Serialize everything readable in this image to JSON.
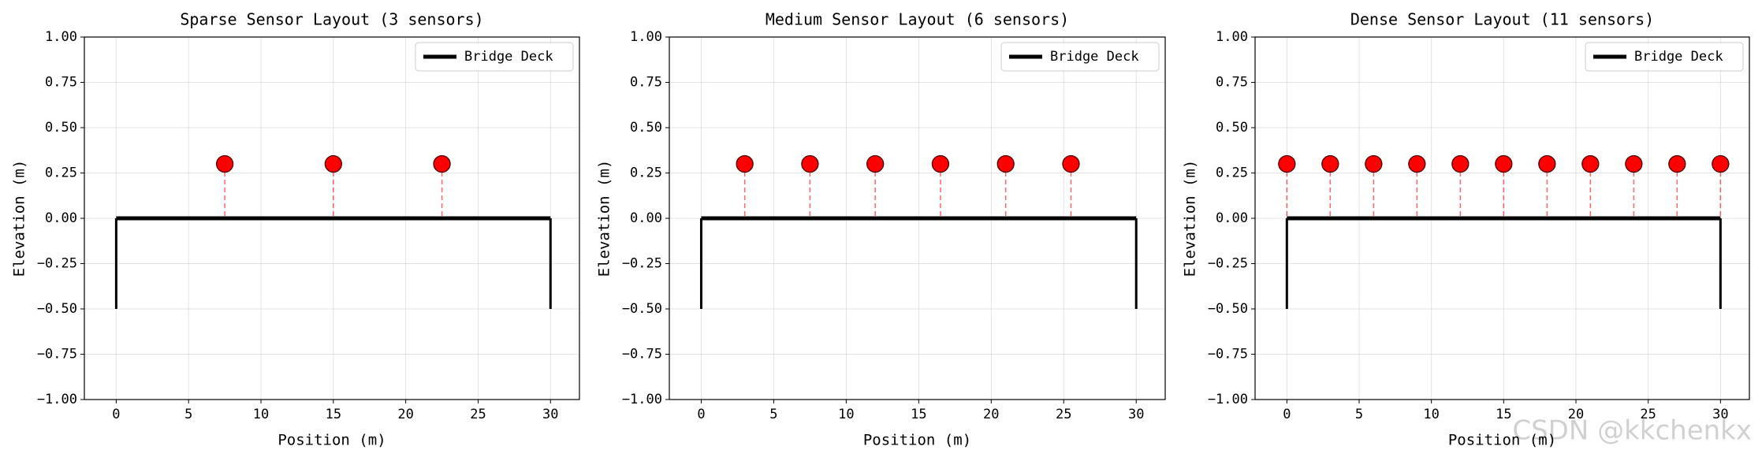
{
  "chart_data": [
    {
      "type": "scatter",
      "title": "Sparse Sensor Layout (3 sensors)",
      "xlabel": "Position (m)",
      "ylabel": "Elevation (m)",
      "x": [
        7.5,
        15,
        22.5
      ],
      "y": [
        0.3,
        0.3,
        0.3
      ],
      "color": "red",
      "deck": {
        "name": "Bridge Deck",
        "x": [
          0,
          30
        ],
        "y": 0,
        "pier_bottom": -0.5,
        "color": "black"
      },
      "xlim": [
        -2.2,
        32
      ],
      "ylim": [
        -1,
        1
      ],
      "xticks": [
        0,
        5,
        10,
        15,
        20,
        25,
        30
      ],
      "yticks": [
        {
          "value": 1,
          "label": "1.00"
        },
        {
          "value": 0.75,
          "label": "0.75"
        },
        {
          "value": 0.5,
          "label": "0.50"
        },
        {
          "value": 0.25,
          "label": "0.25"
        },
        {
          "value": 0,
          "label": "0.00"
        },
        {
          "value": -0.25,
          "label": "−0.25"
        },
        {
          "value": -0.5,
          "label": "−0.50"
        },
        {
          "value": -0.75,
          "label": "−0.75"
        },
        {
          "value": -1,
          "label": "−1.00"
        }
      ],
      "grid": true,
      "legend": "upper right"
    },
    {
      "type": "scatter",
      "title": "Medium Sensor Layout (6 sensors)",
      "xlabel": "Position (m)",
      "ylabel": "Elevation (m)",
      "x": [
        3,
        7.5,
        12,
        16.5,
        21,
        25.5
      ],
      "y": [
        0.3,
        0.3,
        0.3,
        0.3,
        0.3,
        0.3
      ],
      "color": "red",
      "deck": {
        "name": "Bridge Deck",
        "x": [
          0,
          30
        ],
        "y": 0,
        "pier_bottom": -0.5,
        "color": "black"
      },
      "xlim": [
        -2.2,
        32
      ],
      "ylim": [
        -1,
        1
      ],
      "xticks": [
        0,
        5,
        10,
        15,
        20,
        25,
        30
      ],
      "yticks": [
        {
          "value": 1,
          "label": "1.00"
        },
        {
          "value": 0.75,
          "label": "0.75"
        },
        {
          "value": 0.5,
          "label": "0.50"
        },
        {
          "value": 0.25,
          "label": "0.25"
        },
        {
          "value": 0,
          "label": "0.00"
        },
        {
          "value": -0.25,
          "label": "−0.25"
        },
        {
          "value": -0.5,
          "label": "−0.50"
        },
        {
          "value": -0.75,
          "label": "−0.75"
        },
        {
          "value": -1,
          "label": "−1.00"
        }
      ],
      "grid": true,
      "legend": "upper right"
    },
    {
      "type": "scatter",
      "title": "Dense Sensor Layout (11 sensors)",
      "xlabel": "Position (m)",
      "ylabel": "Elevation (m)",
      "x": [
        0,
        3,
        6,
        9,
        12,
        15,
        18,
        21,
        24,
        27,
        30
      ],
      "y": [
        0.3,
        0.3,
        0.3,
        0.3,
        0.3,
        0.3,
        0.3,
        0.3,
        0.3,
        0.3,
        0.3
      ],
      "color": "red",
      "deck": {
        "name": "Bridge Deck",
        "x": [
          0,
          30
        ],
        "y": 0,
        "pier_bottom": -0.5,
        "color": "black"
      },
      "xlim": [
        -2.2,
        32
      ],
      "ylim": [
        -1,
        1
      ],
      "xticks": [
        0,
        5,
        10,
        15,
        20,
        25,
        30
      ],
      "yticks": [
        {
          "value": 1,
          "label": "1.00"
        },
        {
          "value": 0.75,
          "label": "0.75"
        },
        {
          "value": 0.5,
          "label": "0.50"
        },
        {
          "value": 0.25,
          "label": "0.25"
        },
        {
          "value": 0,
          "label": "0.00"
        },
        {
          "value": -0.25,
          "label": "−0.25"
        },
        {
          "value": -0.5,
          "label": "−0.50"
        },
        {
          "value": -0.75,
          "label": "−0.75"
        },
        {
          "value": -1,
          "label": "−1.00"
        }
      ],
      "grid": true,
      "legend": "upper right"
    }
  ],
  "watermark": "CSDN @kkchenkx"
}
